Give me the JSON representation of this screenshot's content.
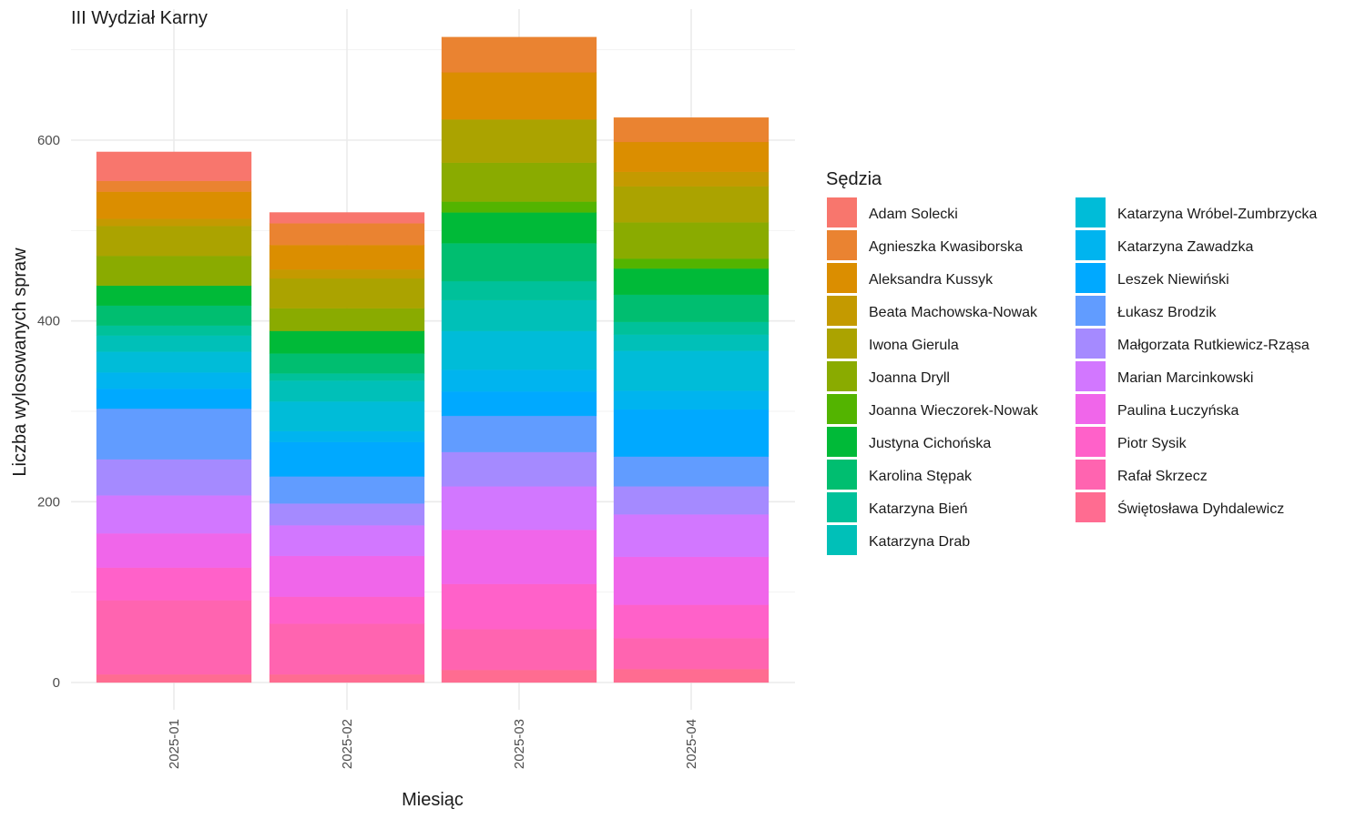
{
  "chart_data": {
    "type": "bar",
    "stacked": true,
    "title": "III Wydział Karny",
    "xlabel": "Miesiąc",
    "ylabel": "Liczba wylosowanych spraw",
    "ylim": [
      0,
      720
    ],
    "yticks": [
      0,
      200,
      400,
      600
    ],
    "grid": true,
    "legend_position": "right",
    "legend_title": "Sędzia",
    "categories": [
      "2025-01",
      "2025-02",
      "2025-03",
      "2025-04"
    ],
    "series": [
      {
        "name": "Świętosława Dyhdalewicz",
        "color": "#FF6C91",
        "values": [
          9,
          9,
          14,
          15
        ]
      },
      {
        "name": "Rafał Skrzecz",
        "color": "#FF64B0",
        "values": [
          82,
          56,
          45,
          34
        ]
      },
      {
        "name": "Piotr Sysik",
        "color": "#FF61C9",
        "values": [
          36,
          30,
          50,
          37
        ]
      },
      {
        "name": "Paulina Łuczyńska",
        "color": "#F066EA",
        "values": [
          38,
          45,
          60,
          53
        ]
      },
      {
        "name": "Marian Marcinkowski",
        "color": "#D277FF",
        "values": [
          42,
          34,
          48,
          47
        ]
      },
      {
        "name": "Małgorzata Rutkiewicz-Rząsa",
        "color": "#A58AFF",
        "values": [
          40,
          24,
          38,
          31
        ]
      },
      {
        "name": "Łukasz Brodzik",
        "color": "#619CFF",
        "values": [
          56,
          30,
          40,
          33
        ]
      },
      {
        "name": "Leszek Niewiński",
        "color": "#00A9FF",
        "values": [
          22,
          38,
          27,
          52
        ]
      },
      {
        "name": "Katarzyna Zawadzka",
        "color": "#00B4EF",
        "values": [
          18,
          12,
          24,
          21
        ]
      },
      {
        "name": "Katarzyna Wróbel-Zumbrzycka",
        "color": "#00BCD8",
        "values": [
          23,
          33,
          43,
          44
        ]
      },
      {
        "name": "Katarzyna Drab",
        "color": "#00C0B8",
        "values": [
          18,
          23,
          34,
          18
        ]
      },
      {
        "name": "Katarzyna Bień",
        "color": "#00C19A",
        "values": [
          11,
          8,
          21,
          14
        ]
      },
      {
        "name": "Karolina Stępak",
        "color": "#00BE70",
        "values": [
          22,
          22,
          42,
          30
        ]
      },
      {
        "name": "Justyna Cichońska",
        "color": "#00BA38",
        "values": [
          22,
          25,
          34,
          29
        ]
      },
      {
        "name": "Joanna Wieczorek-Nowak",
        "color": "#53B400",
        "values": [
          0,
          0,
          12,
          11
        ]
      },
      {
        "name": "Joanna Dryll",
        "color": "#8AAB00",
        "values": [
          33,
          25,
          43,
          40
        ]
      },
      {
        "name": "Iwona Gierula",
        "color": "#ABA300",
        "values": [
          33,
          33,
          48,
          40
        ]
      },
      {
        "name": "Beata Machowska-Nowak",
        "color": "#C49A00",
        "values": [
          8,
          10,
          0,
          16
        ]
      },
      {
        "name": "Aleksandra Kussyk",
        "color": "#DB8E00",
        "values": [
          30,
          27,
          52,
          33
        ]
      },
      {
        "name": "Agnieszka Kwasiborska",
        "color": "#EA8331",
        "values": [
          12,
          24,
          39,
          27
        ]
      },
      {
        "name": "Adam Solecki",
        "color": "#F8766D",
        "values": [
          32,
          12,
          0,
          0
        ]
      }
    ],
    "legend_order": [
      "Adam Solecki",
      "Agnieszka Kwasiborska",
      "Aleksandra Kussyk",
      "Beata Machowska-Nowak",
      "Iwona Gierula",
      "Joanna Dryll",
      "Joanna Wieczorek-Nowak",
      "Justyna Cichońska",
      "Karolina Stępak",
      "Katarzyna Bień",
      "Katarzyna Drab",
      "Katarzyna Wróbel-Zumbrzycka",
      "Katarzyna Zawadzka",
      "Leszek Niewiński",
      "Łukasz Brodzik",
      "Małgorzata Rutkiewicz-Rząsa",
      "Marian Marcinkowski",
      "Paulina Łuczyńska",
      "Piotr Sysik",
      "Rafał Skrzecz",
      "Świętosława Dyhdalewicz"
    ]
  }
}
